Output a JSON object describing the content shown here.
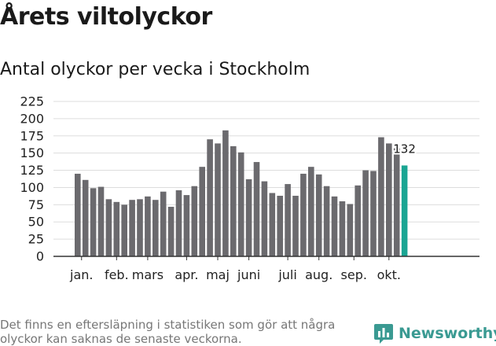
{
  "header": {
    "title": "Årets viltolyckor",
    "subtitle": "Antal olyckor per vecka i Stockholm"
  },
  "footer": {
    "note": "Det finns en eftersläpning i statistiken som gör att några olyckor kan saknas de senaste veckorna.",
    "brand": "Newsworthy"
  },
  "colors": {
    "bar": "#6b6a6e",
    "highlight": "#1aa593",
    "grid": "#dddddd",
    "axis": "#333333",
    "brand": "#3a9a92"
  },
  "chart_data": {
    "type": "bar",
    "title": "Årets viltolyckor",
    "subtitle": "Antal olyckor per vecka i Stockholm",
    "xlabel": "",
    "ylabel": "",
    "ylim": [
      0,
      225
    ],
    "yticks": [
      0,
      25,
      50,
      75,
      100,
      125,
      150,
      175,
      200,
      225
    ],
    "grid": true,
    "legend": "none",
    "month_labels": [
      {
        "label": "jan.",
        "week_index": 0.5
      },
      {
        "label": "feb.",
        "week_index": 5
      },
      {
        "label": "mars",
        "week_index": 9
      },
      {
        "label": "apr.",
        "week_index": 14
      },
      {
        "label": "maj",
        "week_index": 18
      },
      {
        "label": "juni",
        "week_index": 22
      },
      {
        "label": "juli",
        "week_index": 27
      },
      {
        "label": "aug.",
        "week_index": 31
      },
      {
        "label": "sep.",
        "week_index": 35.5
      },
      {
        "label": "okt.",
        "week_index": 40
      }
    ],
    "values": [
      120,
      111,
      99,
      101,
      83,
      79,
      75,
      82,
      83,
      87,
      82,
      94,
      72,
      96,
      89,
      102,
      130,
      170,
      164,
      183,
      160,
      151,
      112,
      137,
      109,
      92,
      88,
      105,
      88,
      120,
      130,
      119,
      102,
      87,
      80,
      76,
      103,
      125,
      124,
      173,
      164,
      157,
      132
    ],
    "highlight_last": true,
    "last_label": "132"
  }
}
